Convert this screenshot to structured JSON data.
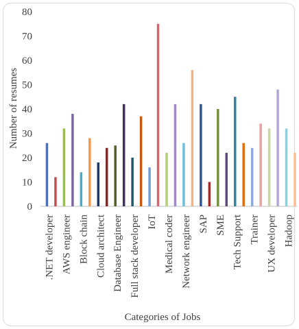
{
  "chart_data": {
    "type": "bar",
    "title": "",
    "xlabel": "Categories of Jobs",
    "ylabel": "Number of resumes",
    "ylim": [
      0,
      80
    ],
    "yticks": [
      0,
      10,
      20,
      30,
      40,
      50,
      60,
      70,
      80
    ],
    "grid": false,
    "legend": "none",
    "groups": [
      {
        "label": ".NET developer",
        "values": [
          26,
          12
        ],
        "colors": [
          "#4472c4",
          "#c0504d"
        ]
      },
      {
        "label": "AWS engineer",
        "values": [
          32,
          38
        ],
        "colors": [
          "#9bbb59",
          "#8064a2"
        ]
      },
      {
        "label": "Block chain",
        "values": [
          14,
          28
        ],
        "colors": [
          "#4bacc6",
          "#f79646"
        ]
      },
      {
        "label": "Cloud architect",
        "values": [
          18,
          24
        ],
        "colors": [
          "#1f3864",
          "#7b2a2a"
        ]
      },
      {
        "label": "Database Engineer",
        "values": [
          25,
          42
        ],
        "colors": [
          "#4f6228",
          "#3f2f5e"
        ]
      },
      {
        "label": "Full stack developer",
        "values": [
          20,
          37
        ],
        "colors": [
          "#215868",
          "#c55a11"
        ]
      },
      {
        "label": "IoT",
        "values": [
          16,
          75
        ],
        "colors": [
          "#6f9fd8",
          "#d9636e"
        ]
      },
      {
        "label": "Medical coder",
        "values": [
          22,
          42
        ],
        "colors": [
          "#b3cf7a",
          "#9f8bc6"
        ]
      },
      {
        "label": "Network engineer",
        "values": [
          26,
          56
        ],
        "colors": [
          "#71bfd7",
          "#f4b183"
        ]
      },
      {
        "label": "SAP",
        "values": [
          42,
          10
        ],
        "colors": [
          "#2e5597",
          "#a52b2b"
        ]
      },
      {
        "label": "SME",
        "values": [
          40,
          22
        ],
        "colors": [
          "#76923c",
          "#5f497a"
        ]
      },
      {
        "label": "Tech Support",
        "values": [
          45,
          26
        ],
        "colors": [
          "#31859c",
          "#e46c0a"
        ]
      },
      {
        "label": "Trainer",
        "values": [
          24,
          34
        ],
        "colors": [
          "#8eaadb",
          "#e8a3a3"
        ]
      },
      {
        "label": "UX developer",
        "values": [
          32,
          48
        ],
        "colors": [
          "#c5d99f",
          "#b4a7d6"
        ]
      },
      {
        "label": "Hadoop",
        "values": [
          32,
          22
        ],
        "colors": [
          "#92cddc",
          "#fac090"
        ]
      }
    ]
  }
}
